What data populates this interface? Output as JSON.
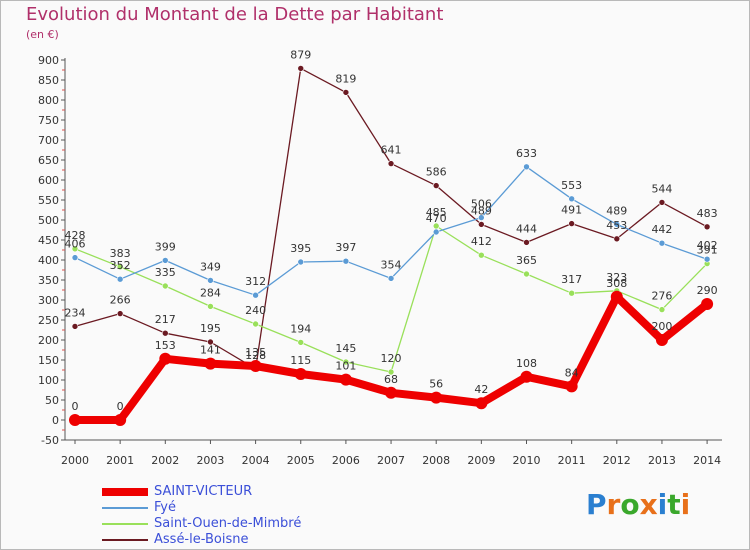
{
  "header": {
    "title": "Evolution du Montant de la Dette par Habitant",
    "subtitle": "(en €)"
  },
  "logo": {
    "letters": [
      "P",
      "r",
      "o",
      "x",
      "i",
      "t",
      "i"
    ],
    "colors": [
      "#2a7fd0",
      "#e8701a",
      "#3aa82c",
      "#e8701a",
      "#2a7fd0",
      "#3aa82c",
      "#e8701a"
    ]
  },
  "chart_data": {
    "type": "line",
    "x": [
      "2000",
      "2001",
      "2002",
      "2003",
      "2004",
      "2005",
      "2006",
      "2007",
      "2008",
      "2009",
      "2010",
      "2011",
      "2012",
      "2013",
      "2014"
    ],
    "ylim": [
      -50,
      900
    ],
    "yticks": [
      -50,
      0,
      50,
      100,
      150,
      200,
      250,
      300,
      350,
      400,
      450,
      500,
      550,
      600,
      650,
      700,
      750,
      800,
      850,
      900
    ],
    "grid": false,
    "legend_position": "bottom-left",
    "series": [
      {
        "name": "Assé-le-Boisne",
        "color": "#6b1a22",
        "values": [
          234,
          266,
          217,
          195,
          128,
          879,
          819,
          641,
          586,
          489,
          444,
          491,
          453,
          544,
          483
        ]
      },
      {
        "name": "Saint-Ouen-de-Mimbré",
        "color": "#99e05a",
        "values": [
          428,
          383,
          335,
          284,
          240,
          194,
          145,
          120,
          485,
          412,
          365,
          317,
          323,
          276,
          391
        ]
      },
      {
        "name": "Fyé",
        "color": "#5b9bd5",
        "values": [
          406,
          352,
          399,
          349,
          312,
          395,
          397,
          354,
          470,
          506,
          633,
          553,
          489,
          442,
          402
        ]
      },
      {
        "name": "SAINT-VICTEUR",
        "color": "#ee0000",
        "values": [
          0,
          0,
          153,
          141,
          135,
          115,
          101,
          68,
          56,
          42,
          108,
          84,
          308,
          200,
          290
        ]
      }
    ]
  },
  "legend": [
    {
      "label": "SAINT-VICTEUR",
      "color": "#ee0000",
      "text_color": "#3b4fd8",
      "thickness": "thick"
    },
    {
      "label": "Fyé",
      "color": "#5b9bd5",
      "text_color": "#3b4fd8",
      "thickness": "thin"
    },
    {
      "label": "Saint-Ouen-de-Mimbré",
      "color": "#99e05a",
      "text_color": "#3b4fd8",
      "thickness": "thin"
    },
    {
      "label": "Assé-le-Boisne",
      "color": "#6b1a22",
      "text_color": "#3b4fd8",
      "thickness": "thin"
    }
  ]
}
